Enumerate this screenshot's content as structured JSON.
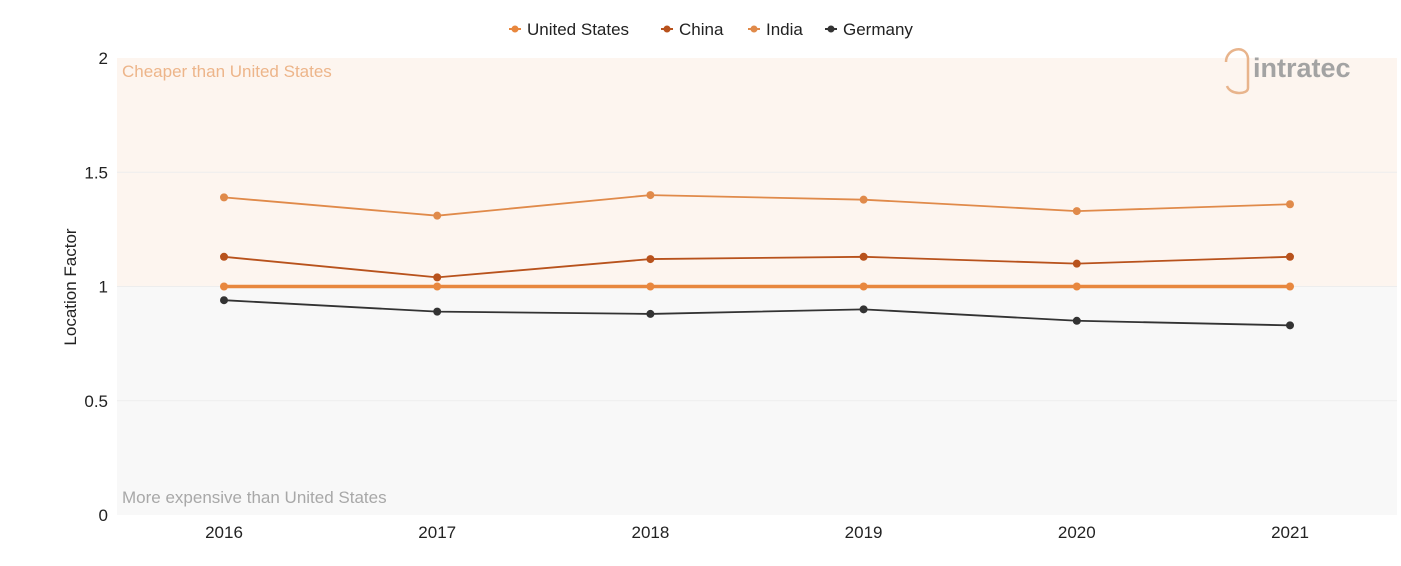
{
  "chart_data": {
    "type": "line",
    "categories": [
      "2016",
      "2017",
      "2018",
      "2019",
      "2020",
      "2021"
    ],
    "series": [
      {
        "name": "United States",
        "color": "#E8873E",
        "values": [
          1,
          1,
          1,
          1,
          1,
          1
        ]
      },
      {
        "name": "China",
        "color": "#B8521C",
        "values": [
          1.13,
          1.04,
          1.12,
          1.13,
          1.1,
          1.13
        ]
      },
      {
        "name": "India",
        "color": "#E08A4A",
        "values": [
          1.39,
          1.31,
          1.4,
          1.38,
          1.33,
          1.36
        ]
      },
      {
        "name": "Germany",
        "color": "#333333",
        "values": [
          0.94,
          0.89,
          0.88,
          0.9,
          0.85,
          0.83
        ]
      }
    ],
    "ylabel": "Location Factor",
    "xlabel": "",
    "ylim": [
      0,
      2
    ],
    "yticks": [
      "0",
      "0.5",
      "1",
      "1.5",
      "2"
    ],
    "legend_position": "top-center",
    "bands": {
      "upper_label": "Cheaper than United States",
      "lower_label": "More expensive than United States",
      "upper_color": "#FDF5EF",
      "lower_color": "#F8F8F8"
    },
    "logo_text": "intratec"
  }
}
